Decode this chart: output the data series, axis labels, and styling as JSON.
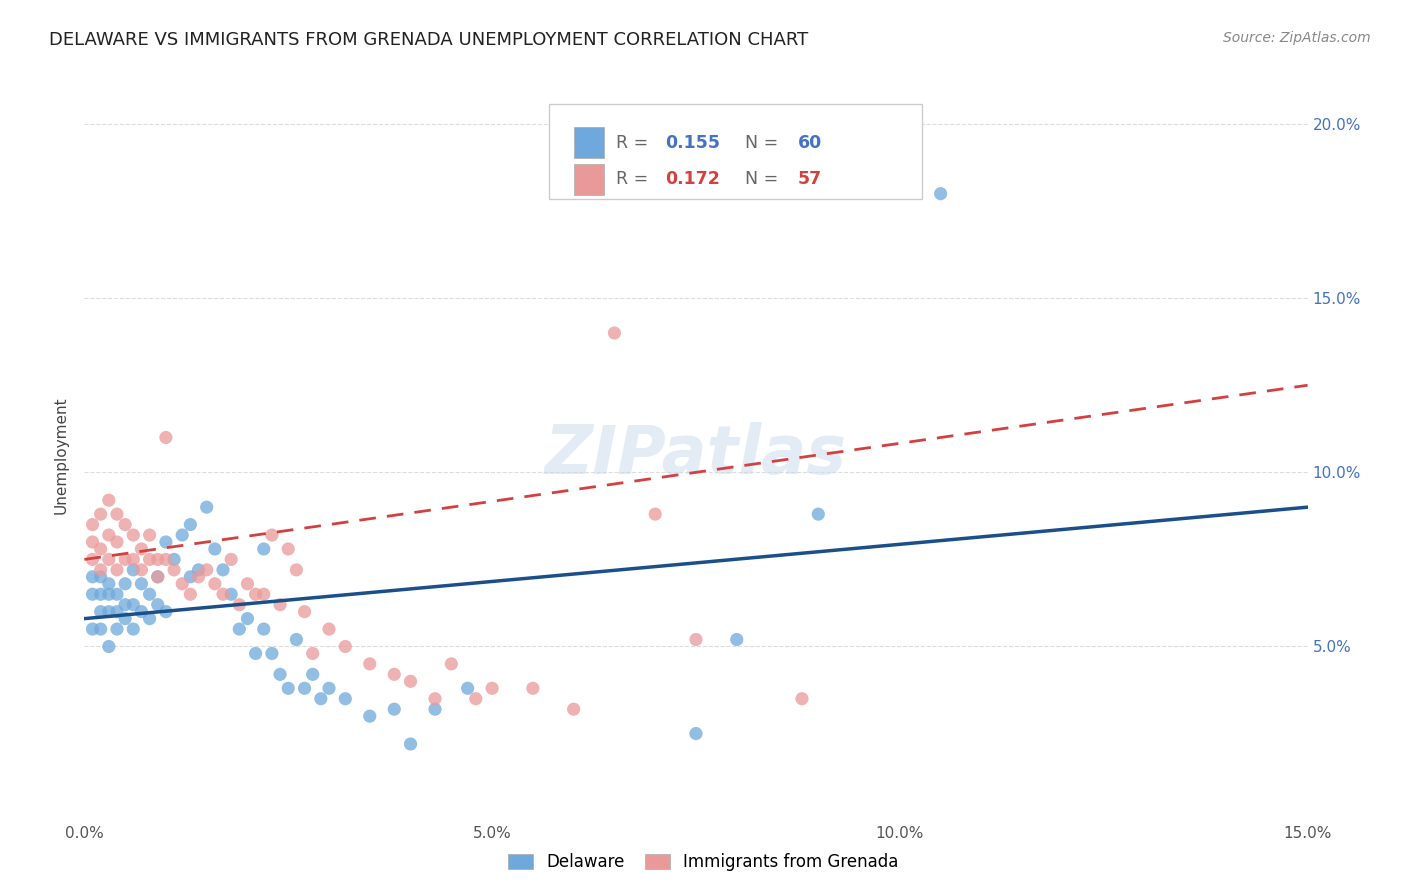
{
  "title": "DELAWARE VS IMMIGRANTS FROM GRENADA UNEMPLOYMENT CORRELATION CHART",
  "source": "Source: ZipAtlas.com",
  "ylabel": "Unemployment",
  "xlim": [
    0.0,
    0.15
  ],
  "ylim": [
    0.0,
    0.21
  ],
  "x_ticks": [
    0.0,
    0.05,
    0.1,
    0.15
  ],
  "x_tick_labels": [
    "0.0%",
    "5.0%",
    "10.0%",
    "15.0%"
  ],
  "y_ticks": [
    0.05,
    0.1,
    0.15,
    0.2
  ],
  "y_tick_labels_right": [
    "5.0%",
    "10.0%",
    "15.0%",
    "20.0%"
  ],
  "delaware_color": "#6fa8dc",
  "grenada_color": "#ea9999",
  "delaware_trend_color": "#1a4f8a",
  "grenada_trend_color": "#d44040",
  "R_delaware": 0.155,
  "N_delaware": 60,
  "R_grenada": 0.172,
  "N_grenada": 57,
  "background_color": "#ffffff",
  "grid_color": "#dddddd",
  "delaware_x": [
    0.001,
    0.001,
    0.001,
    0.002,
    0.002,
    0.002,
    0.002,
    0.003,
    0.003,
    0.003,
    0.003,
    0.004,
    0.004,
    0.004,
    0.005,
    0.005,
    0.005,
    0.006,
    0.006,
    0.006,
    0.007,
    0.007,
    0.008,
    0.008,
    0.009,
    0.009,
    0.01,
    0.01,
    0.011,
    0.012,
    0.013,
    0.013,
    0.014,
    0.015,
    0.016,
    0.017,
    0.018,
    0.019,
    0.02,
    0.021,
    0.022,
    0.022,
    0.023,
    0.024,
    0.025,
    0.026,
    0.027,
    0.028,
    0.029,
    0.03,
    0.032,
    0.035,
    0.038,
    0.04,
    0.043,
    0.047,
    0.075,
    0.08,
    0.09,
    0.105
  ],
  "delaware_y": [
    0.065,
    0.07,
    0.055,
    0.06,
    0.065,
    0.055,
    0.07,
    0.06,
    0.065,
    0.05,
    0.068,
    0.055,
    0.06,
    0.065,
    0.058,
    0.062,
    0.068,
    0.055,
    0.062,
    0.072,
    0.06,
    0.068,
    0.058,
    0.065,
    0.062,
    0.07,
    0.06,
    0.08,
    0.075,
    0.082,
    0.07,
    0.085,
    0.072,
    0.09,
    0.078,
    0.072,
    0.065,
    0.055,
    0.058,
    0.048,
    0.055,
    0.078,
    0.048,
    0.042,
    0.038,
    0.052,
    0.038,
    0.042,
    0.035,
    0.038,
    0.035,
    0.03,
    0.032,
    0.022,
    0.032,
    0.038,
    0.025,
    0.052,
    0.088,
    0.18
  ],
  "grenada_x": [
    0.001,
    0.001,
    0.001,
    0.002,
    0.002,
    0.002,
    0.003,
    0.003,
    0.003,
    0.004,
    0.004,
    0.004,
    0.005,
    0.005,
    0.006,
    0.006,
    0.007,
    0.007,
    0.008,
    0.008,
    0.009,
    0.009,
    0.01,
    0.01,
    0.011,
    0.012,
    0.013,
    0.014,
    0.015,
    0.016,
    0.017,
    0.018,
    0.019,
    0.02,
    0.021,
    0.022,
    0.023,
    0.024,
    0.025,
    0.026,
    0.027,
    0.028,
    0.03,
    0.032,
    0.035,
    0.038,
    0.04,
    0.043,
    0.045,
    0.048,
    0.05,
    0.055,
    0.06,
    0.065,
    0.07,
    0.075,
    0.088
  ],
  "grenada_y": [
    0.075,
    0.08,
    0.085,
    0.072,
    0.078,
    0.088,
    0.075,
    0.082,
    0.092,
    0.072,
    0.08,
    0.088,
    0.075,
    0.085,
    0.075,
    0.082,
    0.072,
    0.078,
    0.075,
    0.082,
    0.075,
    0.07,
    0.075,
    0.11,
    0.072,
    0.068,
    0.065,
    0.07,
    0.072,
    0.068,
    0.065,
    0.075,
    0.062,
    0.068,
    0.065,
    0.065,
    0.082,
    0.062,
    0.078,
    0.072,
    0.06,
    0.048,
    0.055,
    0.05,
    0.045,
    0.042,
    0.04,
    0.035,
    0.045,
    0.035,
    0.038,
    0.038,
    0.032,
    0.14,
    0.088,
    0.052,
    0.035
  ],
  "watermark": "ZIPatlas",
  "title_fontsize": 13,
  "source_fontsize": 10,
  "ylabel_fontsize": 11,
  "tick_fontsize": 11,
  "right_tick_color": "#4472c4"
}
